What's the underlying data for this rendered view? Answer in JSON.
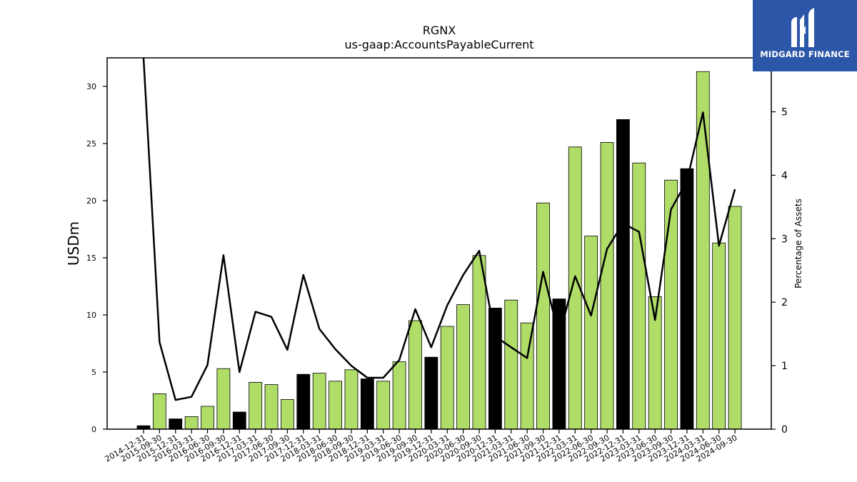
{
  "brand": {
    "name": "MIDGARD FINANCE",
    "color": "#2c57a8"
  },
  "chart_data": {
    "type": "bar",
    "title": "RGNX",
    "subtitle": "us-gaap:AccountsPayableCurrent",
    "ylabel": "USDm",
    "y2label": "Percentage of Assets",
    "ylim": [
      0,
      32.5
    ],
    "y2lim": [
      0,
      5.85
    ],
    "yticks": [
      0,
      5,
      10,
      15,
      20,
      25,
      30
    ],
    "y2ticks": [
      0,
      1,
      2,
      3,
      4,
      5
    ],
    "grid": false,
    "colors": {
      "quarter": "#b0dc68",
      "year_end": "#000000",
      "line": "#000000"
    },
    "categories": [
      "2014-12-31",
      "2015-09-30",
      "2015-12-31",
      "2016-03-31",
      "2016-06-30",
      "2016-09-30",
      "2016-12-31",
      "2017-03-31",
      "2017-06-30",
      "2017-09-30",
      "2017-12-31",
      "2018-03-31",
      "2018-06-30",
      "2018-09-30",
      "2018-12-31",
      "2019-03-31",
      "2019-06-30",
      "2019-09-30",
      "2019-12-31",
      "2020-03-31",
      "2020-06-30",
      "2020-09-30",
      "2020-12-31",
      "2021-03-31",
      "2021-06-30",
      "2021-09-30",
      "2021-12-31",
      "2022-03-31",
      "2022-06-30",
      "2022-09-30",
      "2022-12-31",
      "2023-03-31",
      "2023-06-30",
      "2023-09-30",
      "2023-12-31",
      "2024-03-31",
      "2024-06-30",
      "2024-09-30"
    ],
    "series": [
      {
        "type": "bar",
        "axis": "left",
        "values": [
          0.3,
          3.1,
          0.9,
          1.1,
          2.0,
          5.3,
          1.5,
          4.1,
          3.9,
          2.6,
          4.8,
          4.9,
          4.2,
          5.2,
          4.4,
          4.2,
          5.9,
          9.5,
          6.3,
          9.0,
          10.9,
          15.2,
          10.6,
          11.3,
          9.3,
          19.8,
          11.4,
          24.7,
          16.9,
          25.1,
          27.1,
          23.3,
          11.6,
          21.8,
          22.8,
          31.3,
          16.3,
          19.5
        ],
        "year_end": [
          true,
          false,
          true,
          false,
          false,
          false,
          true,
          false,
          false,
          false,
          true,
          false,
          false,
          false,
          true,
          false,
          false,
          false,
          true,
          false,
          false,
          false,
          true,
          false,
          false,
          false,
          true,
          false,
          false,
          false,
          true,
          false,
          false,
          false,
          true,
          false,
          false,
          false
        ]
      },
      {
        "type": "line",
        "axis": "right",
        "values": [
          6.5,
          1.37,
          0.46,
          0.51,
          1.01,
          2.74,
          0.9,
          1.85,
          1.77,
          1.25,
          2.43,
          1.58,
          1.26,
          1.0,
          0.81,
          0.81,
          1.09,
          1.89,
          1.29,
          1.95,
          2.43,
          2.81,
          1.46,
          1.29,
          1.12,
          2.48,
          1.47,
          2.41,
          1.79,
          2.84,
          3.24,
          3.11,
          1.72,
          3.46,
          3.91,
          4.99,
          2.89,
          3.78
        ]
      }
    ]
  }
}
